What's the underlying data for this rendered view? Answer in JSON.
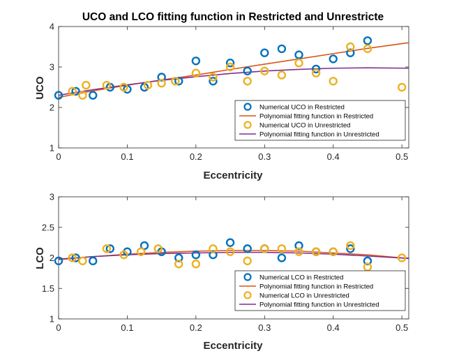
{
  "colors": {
    "blue": "#0072BD",
    "orange": "#D95319",
    "yellow": "#EDB120",
    "purple": "#7E2F8E"
  },
  "chart_data": [
    {
      "type": "scatter",
      "title": "UCO and LCO fitting function in Restricted and Unrestricte",
      "xlabel": "Eccentricity",
      "ylabel": "UCO",
      "xlim": [
        0,
        0.51
      ],
      "ylim": [
        1,
        4
      ],
      "xticks": [
        "0",
        "0.1",
        "0.2",
        "0.3",
        "0.4",
        "0.5"
      ],
      "xtick_values": [
        0,
        0.1,
        0.2,
        0.3,
        0.4,
        0.5
      ],
      "yticks": [
        "1",
        "2",
        "3",
        "4"
      ],
      "ytick_values": [
        1,
        2,
        3,
        4
      ],
      "legend_position": "bottom-right",
      "series": [
        {
          "name": "Numerical UCO in Restricted",
          "kind": "markers",
          "color": "#0072BD",
          "x": [
            0,
            0.025,
            0.05,
            0.075,
            0.1,
            0.125,
            0.15,
            0.175,
            0.2,
            0.225,
            0.25,
            0.275,
            0.3,
            0.325,
            0.35,
            0.375,
            0.4,
            0.425,
            0.45
          ],
          "y": [
            2.3,
            2.4,
            2.3,
            2.5,
            2.45,
            2.5,
            2.75,
            2.65,
            3.15,
            2.65,
            3.1,
            2.9,
            3.35,
            3.45,
            3.3,
            2.95,
            3.2,
            3.35,
            3.65
          ]
        },
        {
          "name": "Polynomial fitting function in Restricted",
          "kind": "line",
          "color": "#D95319",
          "x": [
            0,
            0.05,
            0.1,
            0.15,
            0.2,
            0.25,
            0.3,
            0.35,
            0.4,
            0.45,
            0.51
          ],
          "y": [
            2.25,
            2.41,
            2.55,
            2.68,
            2.8,
            2.94,
            3.07,
            3.2,
            3.33,
            3.46,
            3.6
          ]
        },
        {
          "name": "Numerical UCO in Unrestricted",
          "kind": "markers",
          "color": "#EDB120",
          "x": [
            0.02,
            0.035,
            0.04,
            0.07,
            0.095,
            0.13,
            0.15,
            0.17,
            0.2,
            0.225,
            0.25,
            0.275,
            0.3,
            0.325,
            0.35,
            0.375,
            0.4,
            0.425,
            0.45,
            0.5
          ],
          "y": [
            2.4,
            2.3,
            2.55,
            2.55,
            2.5,
            2.55,
            2.6,
            2.65,
            2.85,
            2.75,
            3.0,
            2.65,
            2.9,
            2.8,
            3.1,
            2.85,
            2.65,
            3.5,
            3.45,
            2.5
          ]
        },
        {
          "name": "Polynomial fitting function in Unrestricted",
          "kind": "line",
          "color": "#7E2F8E",
          "x": [
            0,
            0.05,
            0.1,
            0.15,
            0.2,
            0.25,
            0.3,
            0.35,
            0.4,
            0.45,
            0.51
          ],
          "y": [
            2.3,
            2.44,
            2.56,
            2.67,
            2.76,
            2.84,
            2.9,
            2.94,
            2.97,
            2.98,
            2.97
          ]
        }
      ]
    },
    {
      "type": "scatter",
      "title": "",
      "xlabel": "Eccentricity",
      "ylabel": "LCO",
      "xlim": [
        0,
        0.51
      ],
      "ylim": [
        1,
        3
      ],
      "xticks": [
        "0",
        "0.1",
        "0.2",
        "0.3",
        "0.4",
        "0.5"
      ],
      "xtick_values": [
        0,
        0.1,
        0.2,
        0.3,
        0.4,
        0.5
      ],
      "yticks": [
        "1",
        "1.5",
        "2",
        "2.5",
        "3"
      ],
      "ytick_values": [
        1,
        1.5,
        2,
        2.5,
        3
      ],
      "legend_position": "bottom-right",
      "series": [
        {
          "name": "Numerical LCO in Restricted",
          "kind": "markers",
          "color": "#0072BD",
          "x": [
            0,
            0.025,
            0.05,
            0.075,
            0.1,
            0.125,
            0.15,
            0.175,
            0.2,
            0.225,
            0.25,
            0.275,
            0.3,
            0.325,
            0.35,
            0.375,
            0.4,
            0.425,
            0.45
          ],
          "y": [
            1.95,
            2.0,
            1.95,
            2.15,
            2.1,
            2.2,
            2.1,
            2.0,
            2.05,
            2.05,
            2.25,
            2.15,
            2.15,
            2.0,
            2.2,
            2.1,
            2.1,
            2.15,
            1.95
          ]
        },
        {
          "name": "Polynomial fitting function in Restricted",
          "kind": "line",
          "color": "#D95319",
          "x": [
            0,
            0.05,
            0.1,
            0.15,
            0.2,
            0.25,
            0.3,
            0.35,
            0.4,
            0.45,
            0.51
          ],
          "y": [
            1.97,
            2.02,
            2.06,
            2.09,
            2.11,
            2.12,
            2.12,
            2.11,
            2.08,
            2.05,
            1.99
          ]
        },
        {
          "name": "Numerical LCO in Unrestricted",
          "kind": "markers",
          "color": "#EDB120",
          "x": [
            0.02,
            0.035,
            0.07,
            0.095,
            0.12,
            0.145,
            0.175,
            0.2,
            0.225,
            0.25,
            0.275,
            0.3,
            0.325,
            0.35,
            0.375,
            0.4,
            0.425,
            0.45,
            0.5
          ],
          "y": [
            2.0,
            1.95,
            2.15,
            2.05,
            2.1,
            2.15,
            1.9,
            1.9,
            2.15,
            2.1,
            1.95,
            2.15,
            2.15,
            2.1,
            2.1,
            2.1,
            2.2,
            1.85,
            2.0
          ]
        },
        {
          "name": "Polynomial fitting function in Unrestricted",
          "kind": "line",
          "color": "#7E2F8E",
          "x": [
            0,
            0.05,
            0.1,
            0.15,
            0.2,
            0.25,
            0.3,
            0.35,
            0.4,
            0.45,
            0.51
          ],
          "y": [
            1.98,
            2.02,
            2.05,
            2.07,
            2.08,
            2.09,
            2.09,
            2.08,
            2.06,
            2.03,
            1.99
          ]
        }
      ]
    }
  ]
}
